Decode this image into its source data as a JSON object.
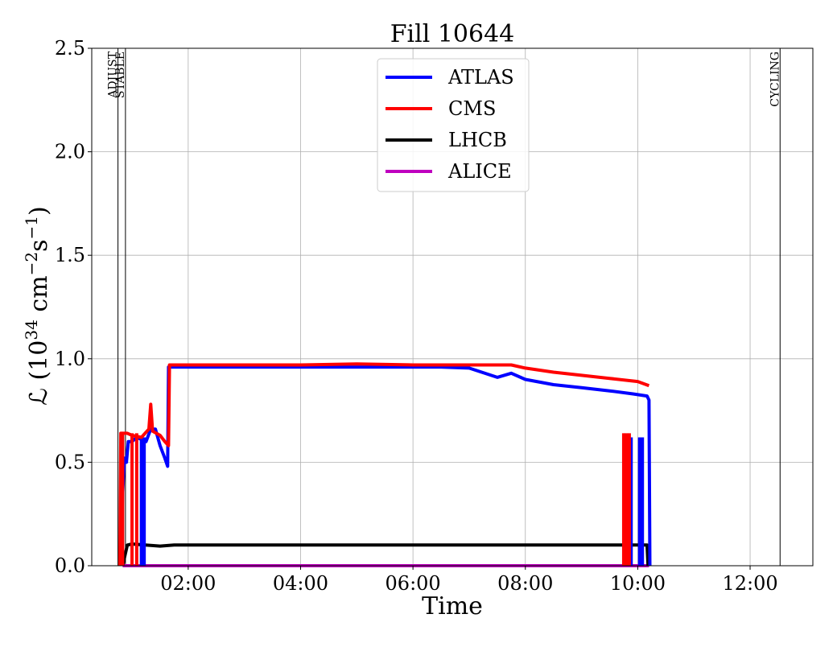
{
  "chart_data": {
    "type": "line",
    "title": "Fill 10644",
    "xlabel": "Time",
    "ylabel_main": "ℒ (10",
    "ylabel_exp1": "34",
    "ylabel_mid": " cm",
    "ylabel_exp2": "−2",
    "ylabel_mid2": "s",
    "ylabel_exp3": "−1",
    "ylabel_end": ")",
    "xlim": [
      "00:17",
      "13:07"
    ],
    "ylim": [
      0,
      2.5
    ],
    "x_ticks": [
      {
        "value": "02:00",
        "label": "02:00"
      },
      {
        "value": "04:00",
        "label": "04:00"
      },
      {
        "value": "06:00",
        "label": "06:00"
      },
      {
        "value": "08:00",
        "label": "08:00"
      },
      {
        "value": "10:00",
        "label": "10:00"
      },
      {
        "value": "12:00",
        "label": "12:00"
      }
    ],
    "y_ticks": [
      {
        "value": 0.0,
        "label": "0.0"
      },
      {
        "value": 0.5,
        "label": "0.5"
      },
      {
        "value": 1.0,
        "label": "1.0"
      },
      {
        "value": 1.5,
        "label": "1.5"
      },
      {
        "value": 2.0,
        "label": "2.0"
      },
      {
        "value": 2.5,
        "label": "2.5"
      }
    ],
    "grid": true,
    "legend_position": "top-center",
    "mode_markers": [
      {
        "time": "00:45",
        "label": "ADJUST"
      },
      {
        "time": "00:53",
        "label": "STABLE"
      },
      {
        "time": "12:32",
        "label": "CYCLING"
      }
    ],
    "series": [
      {
        "name": "ATLAS",
        "color": "#0000ff",
        "points": [
          [
            "00:48",
            0.0
          ],
          [
            "00:50",
            0.35
          ],
          [
            "00:52",
            0.52
          ],
          [
            "00:54",
            0.5
          ],
          [
            "00:56",
            0.6
          ],
          [
            "01:00",
            0.6
          ],
          [
            "01:05",
            0.62
          ],
          [
            "01:10",
            0.61
          ],
          [
            "01:15",
            0.6
          ],
          [
            "01:20",
            0.66
          ],
          [
            "01:25",
            0.66
          ],
          [
            "01:30",
            0.58
          ],
          [
            "01:35",
            0.52
          ],
          [
            "01:38",
            0.48
          ],
          [
            "01:39",
            0.96
          ],
          [
            "02:00",
            0.96
          ],
          [
            "02:30",
            0.96
          ],
          [
            "03:00",
            0.96
          ],
          [
            "03:30",
            0.96
          ],
          [
            "04:00",
            0.96
          ],
          [
            "04:30",
            0.96
          ],
          [
            "05:00",
            0.96
          ],
          [
            "05:30",
            0.96
          ],
          [
            "06:00",
            0.96
          ],
          [
            "06:30",
            0.96
          ],
          [
            "07:00",
            0.955
          ],
          [
            "07:30",
            0.91
          ],
          [
            "07:45",
            0.93
          ],
          [
            "08:00",
            0.9
          ],
          [
            "08:30",
            0.875
          ],
          [
            "09:00",
            0.86
          ],
          [
            "09:30",
            0.845
          ],
          [
            "09:55",
            0.83
          ],
          [
            "10:10",
            0.82
          ],
          [
            "10:12",
            0.8
          ],
          [
            "10:13",
            0.0
          ]
        ]
      },
      {
        "name": "CMS",
        "color": "#ff0000",
        "points": [
          [
            "00:47",
            0.0
          ],
          [
            "00:48",
            0.64
          ],
          [
            "00:55",
            0.64
          ],
          [
            "01:00",
            0.63
          ],
          [
            "01:10",
            0.62
          ],
          [
            "01:18",
            0.66
          ],
          [
            "01:20",
            0.78
          ],
          [
            "01:22",
            0.65
          ],
          [
            "01:30",
            0.63
          ],
          [
            "01:35",
            0.6
          ],
          [
            "01:39",
            0.58
          ],
          [
            "01:40",
            0.97
          ],
          [
            "02:00",
            0.97
          ],
          [
            "03:00",
            0.97
          ],
          [
            "04:00",
            0.97
          ],
          [
            "05:00",
            0.975
          ],
          [
            "06:00",
            0.97
          ],
          [
            "07:00",
            0.97
          ],
          [
            "07:45",
            0.97
          ],
          [
            "08:00",
            0.955
          ],
          [
            "08:30",
            0.935
          ],
          [
            "09:00",
            0.92
          ],
          [
            "09:30",
            0.905
          ],
          [
            "10:00",
            0.89
          ],
          [
            "10:12",
            0.87
          ]
        ]
      },
      {
        "name": "LHCB",
        "color": "#000000",
        "points": [
          [
            "00:50",
            0.0
          ],
          [
            "00:55",
            0.1
          ],
          [
            "01:00",
            0.105
          ],
          [
            "01:30",
            0.095
          ],
          [
            "01:45",
            0.1
          ],
          [
            "02:00",
            0.1
          ],
          [
            "03:00",
            0.1
          ],
          [
            "04:00",
            0.1
          ],
          [
            "05:00",
            0.1
          ],
          [
            "06:00",
            0.1
          ],
          [
            "07:00",
            0.1
          ],
          [
            "08:00",
            0.1
          ],
          [
            "09:00",
            0.1
          ],
          [
            "10:00",
            0.1
          ],
          [
            "10:10",
            0.1
          ],
          [
            "10:11",
            0.0
          ]
        ]
      },
      {
        "name": "ALICE",
        "color": "#bf00bf",
        "points": [
          [
            "00:50",
            0.0
          ],
          [
            "10:12",
            0.0
          ]
        ]
      }
    ],
    "dropouts": [
      {
        "series": "CMS",
        "times": [
          "00:50",
          "01:00",
          "01:05",
          "09:45",
          "09:48",
          "09:51"
        ]
      },
      {
        "series": "ATLAS",
        "times": [
          "01:10",
          "01:13",
          "09:53",
          "10:02",
          "10:05"
        ]
      }
    ]
  }
}
